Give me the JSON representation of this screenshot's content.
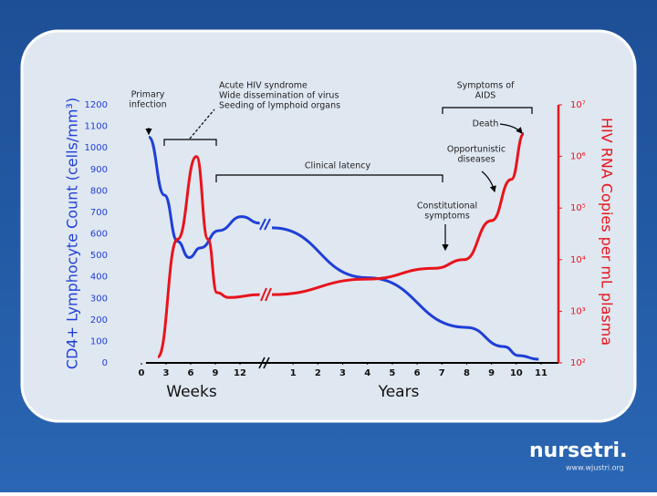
{
  "chart_data": {
    "type": "line",
    "ylabel": "CD4+ Lymphocyte Count (cells/mm³)",
    "y2label": "HIV RNA Copies per mL plasma",
    "ylim": [
      0,
      1200
    ],
    "yticks": [
      0,
      100,
      200,
      300,
      400,
      500,
      600,
      700,
      800,
      900,
      1000,
      1100,
      1200
    ],
    "y2scale": "log",
    "y2lim": [
      100,
      10000000
    ],
    "y2ticks": [
      {
        "value": 100,
        "label": "10²"
      },
      {
        "value": 1000,
        "label": "10³"
      },
      {
        "value": 10000,
        "label": "10⁴"
      },
      {
        "value": 100000,
        "label": "10⁵"
      },
      {
        "value": 1000000,
        "label": "10⁶"
      },
      {
        "value": 10000000,
        "label": "10⁷"
      }
    ],
    "x_axes": [
      {
        "label": "Weeks",
        "xlim": [
          0,
          15
        ],
        "xticks": [
          0,
          3,
          6,
          9,
          12
        ]
      },
      {
        "label": "Years",
        "xlim": [
          0,
          11
        ],
        "xticks": [
          1,
          2,
          3,
          4,
          5,
          6,
          7,
          8,
          9,
          10,
          11
        ]
      }
    ],
    "series": [
      {
        "color": "#1f3fd6",
        "axis": "y",
        "segments": [
          {
            "x": [
              0.9,
              2.8,
              4.4,
              5.8,
              7.2,
              9.4,
              12.2,
              14.4
            ],
            "values": [
              1050,
              780,
              565,
              490,
              535,
              615,
              680,
              650
            ]
          },
          {
            "x": [
              0.15,
              4,
              8,
              9.5,
              10.1,
              10.9
            ],
            "values": [
              628,
              396,
              165,
              76,
              34,
              17
            ]
          }
        ]
      },
      {
        "color": "#e8141c",
        "axis": "y2",
        "segments": [
          {
            "x": [
              2,
              4.4,
              6.7,
              8.1,
              9.2,
              10.6,
              14.4
            ],
            "values": [
              130,
              25000,
              1000000,
              25000,
              2300,
              1850,
              2100
            ]
          },
          {
            "x": [
              0.15,
              4,
              6.7,
              7.9,
              9,
              9.8,
              10.3
            ],
            "values": [
              2100,
              4200,
              6800,
              10000,
              57000,
              360000,
              2750000
            ]
          }
        ]
      }
    ],
    "annotations": [
      {
        "lines": [
          "Primary",
          "infection"
        ]
      },
      {
        "lines": [
          "Acute HIV syndrome",
          "Wide dissemination of virus",
          "Seeding of lymphoid organs"
        ]
      },
      {
        "lines": [
          "Symptoms of",
          "AIDS"
        ]
      },
      {
        "lines": [
          "Death"
        ]
      },
      {
        "lines": [
          "Opportunistic",
          "diseases"
        ]
      },
      {
        "lines": [
          "Clinical latency"
        ]
      },
      {
        "lines": [
          "Constitutional",
          "symptoms"
        ]
      }
    ]
  },
  "footer": {
    "brand": "nursetri.",
    "url": "www.wjustri.org"
  }
}
